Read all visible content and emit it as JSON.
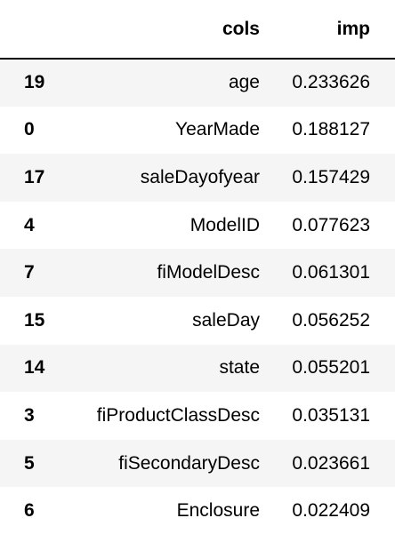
{
  "table": {
    "columns": [
      "cols",
      "imp"
    ],
    "rows": [
      {
        "index": "19",
        "cols": "age",
        "imp": "0.233626"
      },
      {
        "index": "0",
        "cols": "YearMade",
        "imp": "0.188127"
      },
      {
        "index": "17",
        "cols": "saleDayofyear",
        "imp": "0.157429"
      },
      {
        "index": "4",
        "cols": "ModelID",
        "imp": "0.077623"
      },
      {
        "index": "7",
        "cols": "fiModelDesc",
        "imp": "0.061301"
      },
      {
        "index": "15",
        "cols": "saleDay",
        "imp": "0.056252"
      },
      {
        "index": "14",
        "cols": "state",
        "imp": "0.055201"
      },
      {
        "index": "3",
        "cols": "fiProductClassDesc",
        "imp": "0.035131"
      },
      {
        "index": "5",
        "cols": "fiSecondaryDesc",
        "imp": "0.023661"
      },
      {
        "index": "6",
        "cols": "Enclosure",
        "imp": "0.022409"
      }
    ]
  }
}
